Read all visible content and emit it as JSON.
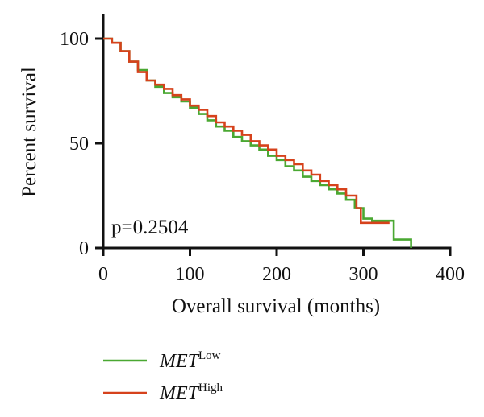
{
  "chart_data": {
    "type": "line",
    "step": true,
    "xlabel": "Overall survival (months)",
    "ylabel": "Percent survival",
    "xlim": [
      0,
      400
    ],
    "ylim": [
      0,
      100
    ],
    "xticks": [
      "0",
      "100",
      "200",
      "300",
      "400"
    ],
    "yticks": [
      "0",
      "50",
      "100"
    ],
    "grid": false,
    "legend_position": "bottom-left",
    "annotation": "p=0.2504",
    "series": [
      {
        "name": "MET",
        "name_sup": "Low",
        "color": "#4aa832",
        "x": [
          0,
          10,
          20,
          30,
          40,
          50,
          60,
          70,
          80,
          90,
          100,
          110,
          120,
          130,
          140,
          150,
          160,
          170,
          180,
          190,
          200,
          210,
          220,
          230,
          240,
          250,
          260,
          270,
          280,
          290,
          300,
          310,
          320,
          335,
          335,
          345,
          355,
          355
        ],
        "y": [
          100,
          98,
          94,
          89,
          85,
          80,
          77,
          74,
          72,
          70,
          67,
          64,
          61,
          58,
          56,
          53,
          51,
          49,
          47,
          44,
          42,
          39,
          37,
          34,
          32,
          30,
          28,
          26,
          23,
          19,
          14,
          13,
          13,
          13,
          4,
          4,
          4,
          0
        ]
      },
      {
        "name": "MET",
        "name_sup": "High",
        "color": "#d6421c",
        "x": [
          0,
          10,
          20,
          30,
          40,
          50,
          60,
          70,
          80,
          90,
          100,
          110,
          120,
          130,
          140,
          150,
          160,
          170,
          180,
          190,
          200,
          210,
          220,
          230,
          240,
          250,
          260,
          270,
          280,
          292,
          292,
          297,
          297,
          300,
          310,
          320,
          330
        ],
        "y": [
          100,
          98,
          94,
          89,
          84,
          80,
          78,
          76,
          73,
          71,
          68,
          66,
          63,
          60,
          58,
          56,
          54,
          51,
          49,
          47,
          44,
          42,
          40,
          37,
          35,
          32,
          30,
          28,
          25,
          25,
          19,
          19,
          12,
          12,
          12,
          12,
          12
        ]
      }
    ]
  }
}
